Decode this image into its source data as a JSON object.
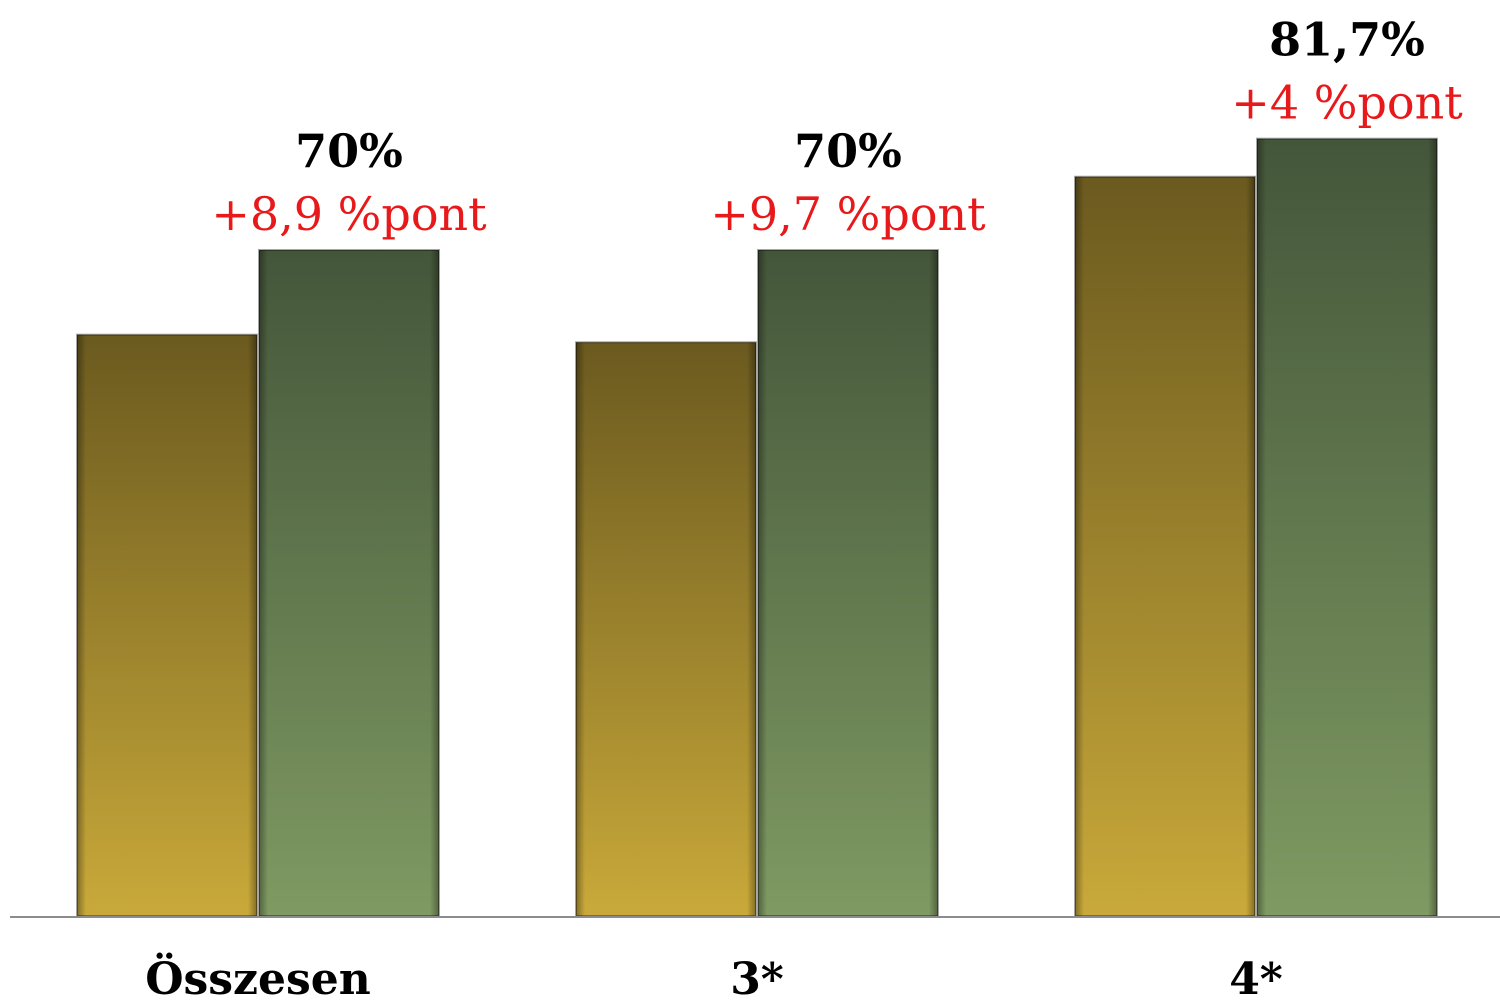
{
  "chart_data": {
    "type": "bar",
    "categories": [
      "Összesen",
      "3*",
      "4*"
    ],
    "series": [
      {
        "values": [
          61.1,
          60.3,
          77.7
        ]
      },
      {
        "values": [
          70,
          70,
          81.7
        ]
      }
    ],
    "data_labels": [
      "70%",
      "70%",
      "81,7%"
    ],
    "change_labels": [
      "+8,9 %pont",
      "+9,7 %pont",
      "+4 %pont"
    ],
    "ylim": [
      0,
      100
    ],
    "grid": false,
    "legend": "none"
  },
  "colors": {
    "series_1_top": "#6b5a1f",
    "series_1_bottom": "#c9a93a",
    "series_2_top": "#44563a",
    "series_2_bottom": "#7f9a62",
    "change_label": "#e8191a",
    "axis": "#8c8c8c"
  }
}
